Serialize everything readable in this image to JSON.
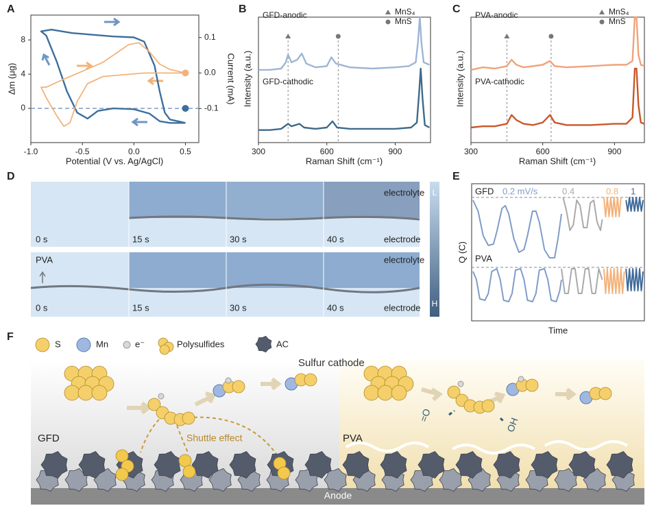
{
  "chart_data": [
    {
      "type": "line",
      "label": "A",
      "x_label": "Potential (V vs. Ag/AgCl)",
      "y_label": "Δm (μg)",
      "y2_label": "Current (mA)",
      "xlim": [
        -1.0,
        0.63
      ],
      "xticks": [
        {
          "value": -1,
          "label": "-1.0"
        },
        -0.5,
        {
          "value": 0,
          "label": "0.0"
        },
        0.5
      ],
      "ylim": [
        -4,
        10.9
      ],
      "yticks": [
        0,
        4,
        8
      ],
      "y2lim": [
        -0.196,
        0.163
      ],
      "y2ticks": [
        -0.1,
        {
          "value": 0,
          "label": "0.0"
        },
        0.1
      ],
      "hlines": [
        0
      ],
      "series": [
        {
          "color": "#3d6e9e",
          "x": [
            0.5,
            0.35,
            0.25,
            0.15,
            0,
            -0.2,
            -0.35,
            -0.45,
            -0.55,
            -0.65,
            -0.75,
            -0.85,
            -0.9,
            -0.8,
            -0.6,
            -0.4,
            -0.2,
            0,
            0.1,
            0.2,
            0.25,
            0.3,
            0.35,
            0.5
          ],
          "values": [
            -1.7,
            -1.7,
            -1.5,
            -0.6,
            -0.1,
            0,
            -0.3,
            -1.2,
            -0.5,
            2,
            5.5,
            8.5,
            9,
            9.2,
            8.8,
            8.6,
            8.4,
            8.3,
            7.8,
            5,
            2,
            -0.5,
            -1.3,
            -1.7
          ]
        },
        {
          "color": "#f2b37a",
          "axis": "y2",
          "x": [
            0.5,
            0.3,
            0.1,
            -0.1,
            -0.3,
            -0.45,
            -0.55,
            -0.62,
            -0.68,
            -0.75,
            -0.85,
            -0.9,
            -0.85,
            -0.7,
            -0.5,
            -0.3,
            -0.15,
            -0.05,
            0.05,
            0.15,
            0.25,
            0.35,
            0.5
          ],
          "values": [
            0,
            0,
            0,
            -0.005,
            -0.01,
            -0.03,
            -0.08,
            -0.14,
            -0.15,
            -0.12,
            -0.07,
            -0.04,
            -0.04,
            -0.02,
            0.005,
            0.03,
            0.06,
            0.08,
            0.085,
            0.06,
            0.025,
            0.01,
            0
          ]
        }
      ]
    },
    {
      "type": "line",
      "label": "B",
      "x_label": "Raman Shift (cm⁻¹)",
      "y_label": "Intensity (a.u.)",
      "xlim": [
        300,
        1055
      ],
      "xticks": [
        300,
        600,
        900
      ],
      "ylim": [
        0,
        100
      ],
      "markers": [
        {
          "name": "MnS₄",
          "symbol": "triangle",
          "x": 430,
          "color": "#777777"
        },
        {
          "name": "MnS",
          "symbol": "circle",
          "x": 650,
          "color": "#777777"
        }
      ],
      "series": [
        {
          "name": "GFD-anodic",
          "color": "#9db5d6",
          "x": [
            300,
            350,
            400,
            420,
            430,
            445,
            470,
            490,
            510,
            550,
            600,
            620,
            640,
            700,
            800,
            900,
            960,
            990,
            1000,
            1008,
            1015,
            1025,
            1050
          ],
          "values": [
            58,
            58,
            59,
            64,
            70,
            64,
            66,
            71,
            63,
            60,
            61,
            68,
            63,
            60,
            59,
            60,
            61,
            64,
            80,
            100,
            80,
            64,
            62
          ]
        },
        {
          "name": "GFD-cathodic",
          "color": "#3f6a8a",
          "x": [
            300,
            350,
            400,
            430,
            445,
            480,
            500,
            550,
            600,
            625,
            645,
            700,
            800,
            900,
            970,
            995,
            1005,
            1012,
            1020,
            1030,
            1050
          ],
          "values": [
            10,
            10,
            11,
            15,
            13,
            15,
            12,
            11,
            12,
            17,
            12,
            11,
            11,
            11,
            12,
            16,
            40,
            59,
            35,
            14,
            12
          ]
        }
      ]
    },
    {
      "type": "line",
      "label": "C",
      "x_label": "Raman Shift (cm⁻¹)",
      "y_label": "Intensity (a.u.)",
      "xlim": [
        300,
        1025
      ],
      "xticks": [
        300,
        600,
        900
      ],
      "ylim": [
        0,
        100
      ],
      "markers": [
        {
          "name": "MnS₄",
          "symbol": "triangle",
          "x": 450,
          "color": "#777777"
        },
        {
          "name": "MnS",
          "symbol": "circle",
          "x": 635,
          "color": "#777777"
        }
      ],
      "series": [
        {
          "name": "PVA-anodic",
          "color": "#f0a27a",
          "x": [
            300,
            350,
            400,
            450,
            470,
            490,
            520,
            560,
            600,
            630,
            650,
            700,
            800,
            900,
            950,
            975,
            985,
            992,
            1000,
            1010,
            1025
          ],
          "values": [
            58,
            60,
            59,
            61,
            66,
            62,
            60,
            61,
            62,
            65,
            61,
            60,
            61,
            62,
            62,
            65,
            100,
            100,
            70,
            62,
            61
          ]
        },
        {
          "name": "PVA-cathodic",
          "color": "#c9572a",
          "x": [
            300,
            350,
            400,
            450,
            470,
            490,
            520,
            560,
            600,
            630,
            650,
            700,
            800,
            900,
            950,
            975,
            985,
            992,
            1000,
            1010,
            1025
          ],
          "values": [
            12,
            13,
            13,
            15,
            22,
            18,
            15,
            14,
            16,
            22,
            16,
            14,
            14,
            15,
            15,
            20,
            59,
            59,
            30,
            16,
            15
          ]
        }
      ]
    },
    {
      "type": "segments",
      "label": "E",
      "x_label": "Time",
      "y_label": "Q (C)",
      "xlim": [
        0,
        100
      ],
      "ylim": [
        0,
        100
      ],
      "rates": [
        {
          "label": "0.2 mV/s",
          "color": "#7f9cc8"
        },
        {
          "label": "0.4",
          "color": "#a9a9a9"
        },
        {
          "label": "0.8",
          "color": "#f3b27a"
        },
        {
          "label": "1",
          "color": "#3f6a9a"
        }
      ],
      "rows": [
        {
          "label": "GFD",
          "reference": 90,
          "segments": [
            {
              "x": [
                0,
                3,
                6,
                9,
                12,
                14,
                17,
                19,
                21,
                24,
                27,
                30,
                32,
                35,
                37,
                39,
                42,
                45,
                48,
                50,
                52
              ],
              "values": [
                88,
                80,
                62,
                55,
                56,
                65,
                82,
                84,
                78,
                60,
                50,
                52,
                62,
                80,
                80,
                72,
                52,
                46,
                46,
                60,
                78
              ]
            },
            {
              "x": [
                53,
                55,
                57,
                59,
                61,
                63,
                65,
                67,
                69,
                71,
                73,
                75,
                76
              ],
              "values": [
                90,
                80,
                66,
                70,
                88,
                84,
                68,
                68,
                86,
                88,
                72,
                66,
                74
              ]
            },
            {
              "x": [
                77,
                78,
                79,
                80,
                81,
                82,
                83,
                84,
                85,
                86,
                87
              ],
              "values": [
                90,
                76,
                90,
                76,
                90,
                76,
                90,
                76,
                90,
                76,
                90
              ]
            },
            {
              "x": [
                90,
                91,
                92,
                93,
                94,
                95,
                96,
                97,
                98,
                99,
                100
              ],
              "values": [
                88,
                80,
                90,
                80,
                90,
                80,
                90,
                80,
                90,
                80,
                88
              ]
            }
          ]
        },
        {
          "label": "PVA",
          "reference": 39,
          "segments": [
            {
              "x": [
                0,
                2,
                4,
                7,
                9,
                11,
                14,
                16,
                18,
                21,
                23,
                25,
                28,
                30,
                32,
                35,
                37,
                39,
                42,
                44,
                46,
                49,
                51,
                52
              ],
              "values": [
                36,
                30,
                16,
                15,
                20,
                36,
                38,
                30,
                15,
                14,
                20,
                37,
                38,
                30,
                15,
                14,
                20,
                37,
                38,
                30,
                15,
                14,
                22,
                30
              ]
            },
            {
              "x": [
                52,
                54,
                56,
                58,
                60,
                62,
                64,
                66,
                68,
                70,
                72,
                74,
                76
              ],
              "values": [
                38,
                20,
                20,
                38,
                38,
                20,
                20,
                38,
                38,
                20,
                20,
                38,
                30
              ]
            },
            {
              "x": [
                77,
                78,
                79,
                80,
                81,
                82,
                83,
                84,
                85,
                86,
                87,
                88,
                89
              ],
              "values": [
                38,
                20,
                38,
                20,
                38,
                20,
                38,
                20,
                38,
                20,
                38,
                20,
                36
              ]
            },
            {
              "x": [
                90,
                91,
                92,
                93,
                94,
                95,
                96,
                97,
                98,
                99,
                100
              ],
              "values": [
                38,
                22,
                38,
                22,
                38,
                22,
                38,
                22,
                38,
                22,
                36
              ]
            }
          ]
        }
      ]
    }
  ],
  "panel_d": {
    "label": "D",
    "colorbar": [
      "L",
      "H"
    ],
    "rows": [
      {
        "times": [
          "0 s",
          "15 s",
          "30 s",
          "40 s"
        ],
        "electrolyte": "electrolyte",
        "electrode": "electrode"
      },
      {
        "label": "PVA",
        "times": [
          "0 s",
          "15 s",
          "30 s",
          "40 s"
        ],
        "electrolyte": "electrolyte",
        "electrode": "electrode"
      }
    ]
  },
  "panel_f": {
    "label": "F",
    "legend": [
      "S",
      "Mn",
      "e⁻",
      "Polysulfides",
      "AC"
    ],
    "title": "Sulfur cathode",
    "left": {
      "label": "GFD",
      "annotation": "Shuttle effect"
    },
    "right": {
      "label": "PVA",
      "groups": [
        "=O",
        "OH"
      ]
    },
    "anode": "Anode"
  }
}
